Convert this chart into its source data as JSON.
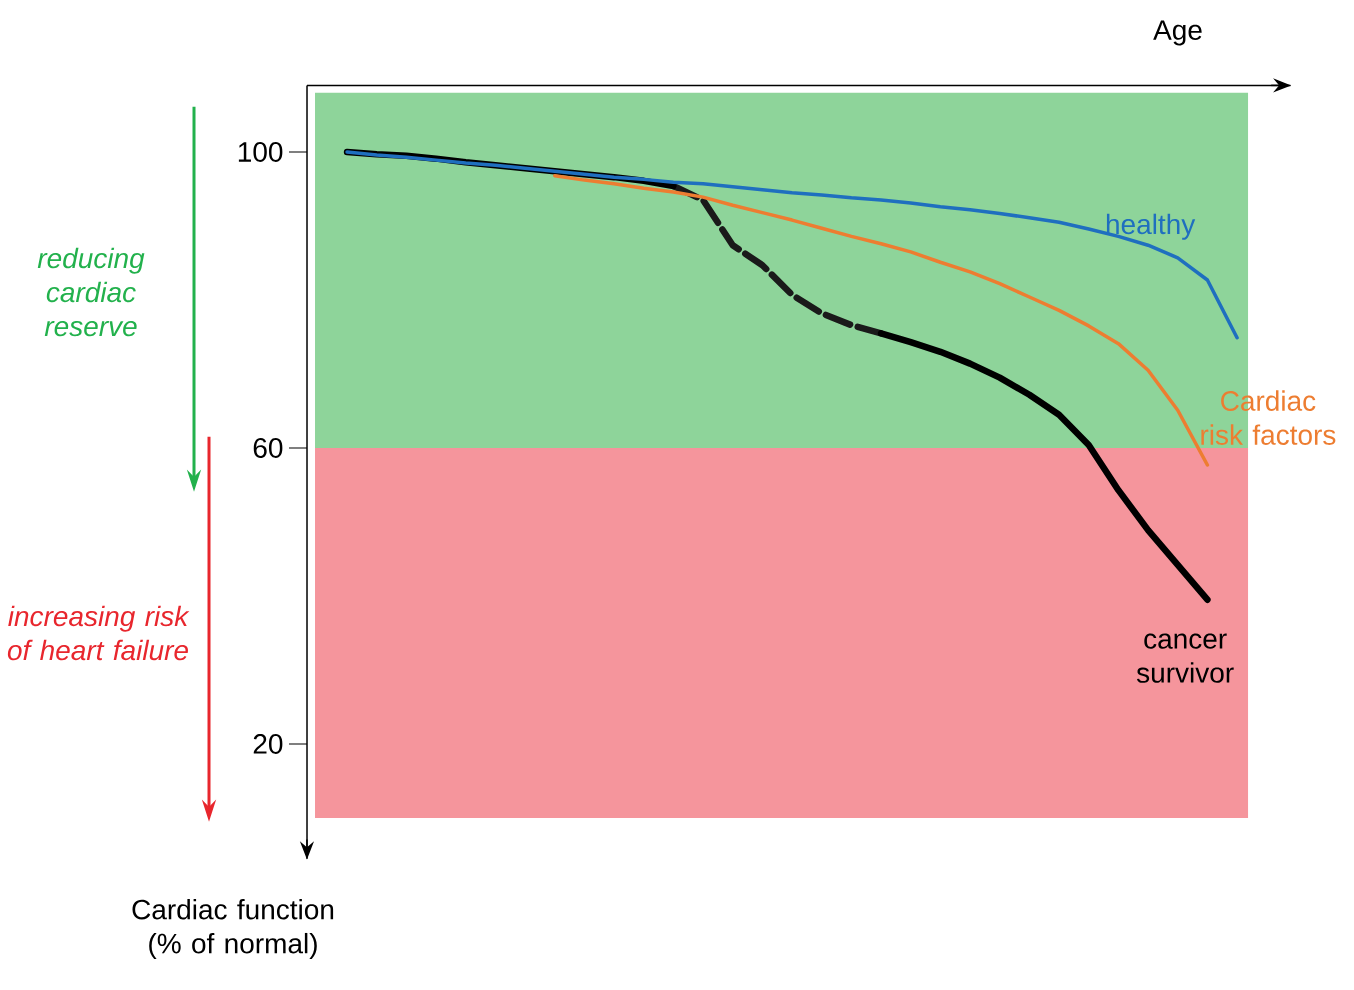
{
  "chart_data": {
    "type": "line",
    "xlabel": "Age",
    "ylabel": "Cardiac function (% of normal)",
    "categories": [
      null,
      null,
      null,
      null,
      null,
      null,
      null,
      null,
      null,
      null,
      null,
      null,
      null,
      null,
      null,
      null,
      null,
      null,
      null,
      null,
      null,
      null,
      null,
      null,
      null,
      null,
      null,
      null,
      null,
      null,
      null
    ],
    "series": [
      {
        "name": "healthy",
        "color": "#1f6fbf",
        "line_style": "solid",
        "values": [
          100,
          99.6,
          99.3,
          98.9,
          98.5,
          98.2,
          97.8,
          97.4,
          97.0,
          96.6,
          96.3,
          95.9,
          95.7,
          95.3,
          94.9,
          94.5,
          94.2,
          93.8,
          93.5,
          93.1,
          92.6,
          92.2,
          91.7,
          91.1,
          90.5,
          89.6,
          88.6,
          87.4,
          85.7,
          82.7,
          74.9
        ]
      },
      {
        "name": "Cardiac risk factors",
        "color": "#ed7d31",
        "line_style": "solid",
        "values": [
          null,
          null,
          null,
          null,
          null,
          null,
          null,
          96.8,
          96.2,
          95.7,
          95.1,
          94.6,
          93.9,
          92.8,
          91.8,
          90.8,
          89.7,
          88.6,
          87.6,
          86.5,
          85.1,
          83.8,
          82.2,
          80.4,
          78.6,
          76.5,
          74.1,
          70.5,
          65.1,
          57.7,
          null
        ]
      },
      {
        "name": "cancer survivor",
        "color": "#000000",
        "line_style": "solid",
        "values": [
          100,
          99.7,
          99.5,
          99.1,
          98.6,
          98.2,
          97.8,
          97.4,
          97.0,
          96.6,
          96.1,
          95.4,
          null,
          null,
          null,
          null,
          null,
          null,
          75.5,
          74.3,
          73.0,
          71.4,
          69.5,
          67.2,
          64.5,
          60.4,
          54.3,
          48.9,
          44.2,
          39.5,
          null
        ]
      },
      {
        "color": "#1a1a1a",
        "line_style": "dashed",
        "values": [
          null,
          null,
          null,
          null,
          null,
          null,
          null,
          null,
          null,
          null,
          null,
          95.4,
          93.5,
          87.4,
          84.7,
          80.7,
          78.2,
          76.6,
          75.5,
          null,
          null,
          null,
          null,
          null,
          null,
          null,
          null,
          null,
          null,
          null,
          null
        ]
      }
    ],
    "ylim": [
      4.5,
      109
    ],
    "yticks": [
      20,
      60,
      100
    ],
    "tick_labels": "y",
    "legend": false,
    "grid": false,
    "marker": "none",
    "bands": [
      {
        "axis": "y",
        "from": 60,
        "to": 108,
        "color": "#8ed49a"
      },
      {
        "axis": "y",
        "from": 10,
        "to": 60,
        "color": "#f5959c"
      }
    ],
    "annotations": [
      "reducing cardiac reserve",
      "increasing risk of heart failure"
    ]
  }
}
